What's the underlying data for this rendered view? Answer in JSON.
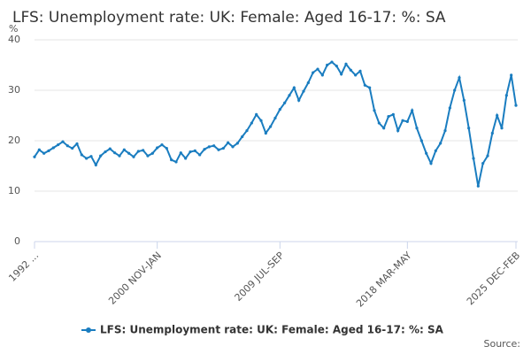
{
  "chart_data": {
    "type": "line",
    "title": "LFS: Unemployment rate: UK: Female: Aged 16-17: %: SA",
    "y_label": "%",
    "source": "Source:",
    "categories": [
      "1992 ...",
      null,
      null,
      null,
      null,
      null,
      null,
      null,
      null,
      null,
      null,
      null,
      null,
      null,
      null,
      null,
      null,
      null,
      null,
      null,
      null,
      null,
      null,
      null,
      null,
      null,
      "2000 NOV-JAN",
      null,
      null,
      null,
      null,
      null,
      null,
      null,
      null,
      null,
      null,
      null,
      null,
      null,
      null,
      null,
      null,
      null,
      null,
      null,
      null,
      null,
      null,
      null,
      null,
      null,
      "2009 JUL-SEP",
      null,
      null,
      null,
      null,
      null,
      null,
      null,
      null,
      null,
      null,
      null,
      null,
      null,
      null,
      null,
      null,
      null,
      null,
      null,
      null,
      null,
      null,
      null,
      null,
      null,
      null,
      "2018 MAR-MAY",
      null,
      null,
      null,
      null,
      null,
      null,
      null,
      null,
      null,
      null,
      null,
      null,
      null,
      null,
      null,
      null,
      null,
      null,
      null,
      null,
      null,
      null,
      "2025 DEC-FEB"
    ],
    "series": [
      {
        "name": "LFS: Unemployment rate: UK: Female: Aged 16-17: %: SA",
        "color": "#1a7dc0",
        "values": [
          16.8,
          18.2,
          17.5,
          18.0,
          18.6,
          19.2,
          19.8,
          19.0,
          18.5,
          19.4,
          17.2,
          16.5,
          16.9,
          15.2,
          17.0,
          17.8,
          18.4,
          17.6,
          17.0,
          18.2,
          17.5,
          16.8,
          17.9,
          18.1,
          17.0,
          17.5,
          18.6,
          19.2,
          18.5,
          16.2,
          15.8,
          17.6,
          16.5,
          17.8,
          18.0,
          17.2,
          18.3,
          18.8,
          19.0,
          18.2,
          18.5,
          19.6,
          18.8,
          19.5,
          20.8,
          22.0,
          23.5,
          25.2,
          24.0,
          21.5,
          22.8,
          24.5,
          26.2,
          27.5,
          29.0,
          30.5,
          28.0,
          29.8,
          31.5,
          33.5,
          34.2,
          33.0,
          35.0,
          35.6,
          34.8,
          33.2,
          35.2,
          34.0,
          33.0,
          33.8,
          31.0,
          30.5,
          26.0,
          23.5,
          22.5,
          24.8,
          25.2,
          22.0,
          24.0,
          23.8,
          26.0,
          22.5,
          20.0,
          17.5,
          15.5,
          18.0,
          19.5,
          22.0,
          26.5,
          30.0,
          32.5,
          28.0,
          22.5,
          16.5,
          11.0,
          15.5,
          17.0,
          21.5,
          25.0,
          22.5,
          29.0,
          33.0,
          27.0
        ]
      }
    ],
    "ylim": [
      0,
      40
    ],
    "yticks": [
      0,
      10,
      20,
      30,
      40
    ],
    "grid": true
  }
}
